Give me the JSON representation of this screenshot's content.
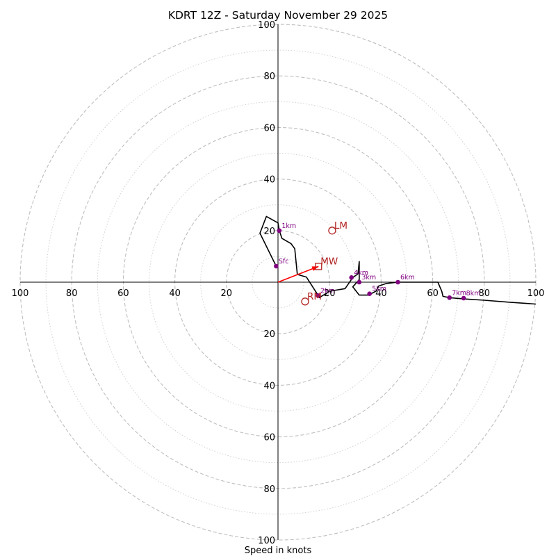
{
  "chart_data": {
    "type": "hodograph",
    "title": "KDRT 12Z - Saturday November 29 2025",
    "xlabel": "Speed in knots",
    "units": "knots",
    "rings_major": [
      20,
      40,
      60,
      80,
      100
    ],
    "rings_minor": [
      10,
      30,
      50,
      70,
      90
    ],
    "range": 100,
    "ticks": {
      "top": [
        "20",
        "40",
        "60",
        "80",
        "100"
      ],
      "bottom": [
        "20",
        "40",
        "60",
        "80",
        "100"
      ],
      "left": [
        "20",
        "40",
        "60",
        "80",
        "100"
      ],
      "right": [
        "20",
        "40",
        "60",
        "80",
        "100"
      ]
    },
    "colors": {
      "trace": "#000000",
      "height_marker": "#800080",
      "motion": "#b22222",
      "mean_wind_vector": "#ff0000",
      "grid": "#bfbfbf"
    },
    "trace": [
      [
        -0.7,
        6.2
      ],
      [
        -7,
        19
      ],
      [
        -4.5,
        25.5
      ],
      [
        0,
        23
      ],
      [
        0.5,
        20
      ],
      [
        1.5,
        17
      ],
      [
        5,
        15
      ],
      [
        6.5,
        13
      ],
      [
        7.5,
        3
      ],
      [
        11,
        2
      ],
      [
        15.5,
        -5
      ],
      [
        16,
        -6
      ],
      [
        20,
        -3.5
      ],
      [
        26,
        -2.5
      ],
      [
        29,
        1.8
      ],
      [
        31,
        3.2
      ],
      [
        31.5,
        8
      ],
      [
        31.5,
        1
      ],
      [
        29,
        -1.8
      ],
      [
        31.5,
        -5
      ],
      [
        35,
        -5
      ],
      [
        38,
        -3.5
      ],
      [
        39,
        -1.5
      ],
      [
        42,
        -0.5
      ],
      [
        46.5,
        0
      ],
      [
        52,
        0
      ],
      [
        58,
        0
      ],
      [
        62,
        0
      ],
      [
        63.5,
        -3.5
      ],
      [
        64,
        -5.5
      ],
      [
        66.5,
        -6
      ],
      [
        72,
        -6.5
      ],
      [
        80,
        -7
      ],
      [
        90,
        -7.8
      ],
      [
        100,
        -8.5
      ]
    ],
    "height_markers": [
      {
        "label": "Sfc",
        "u": -0.7,
        "v": 6.2
      },
      {
        "label": "1km",
        "u": 0.5,
        "v": 20
      },
      {
        "label": "2km",
        "u": 15.5,
        "v": -5.2
      },
      {
        "label": "3km",
        "u": 31.5,
        "v": 0
      },
      {
        "label": "4km",
        "u": 28.5,
        "v": 1.8
      },
      {
        "label": "5km",
        "u": 35.5,
        "v": -4.5
      },
      {
        "label": "6km",
        "u": 46.5,
        "v": 0
      },
      {
        "label": "7km",
        "u": 66.5,
        "v": -6
      },
      {
        "label": "8km",
        "u": 72,
        "v": -6.2
      }
    ],
    "storm_motion": [
      {
        "label": "LM",
        "u": 21,
        "v": 20,
        "marker": "circle"
      },
      {
        "label": "RM",
        "u": 10.5,
        "v": -7.5,
        "marker": "circle"
      },
      {
        "label": "MW",
        "u": 15.7,
        "v": 6.1,
        "marker": "square"
      }
    ],
    "mean_wind_vector": {
      "from": [
        0,
        0
      ],
      "to": [
        15.7,
        6.1
      ]
    }
  }
}
